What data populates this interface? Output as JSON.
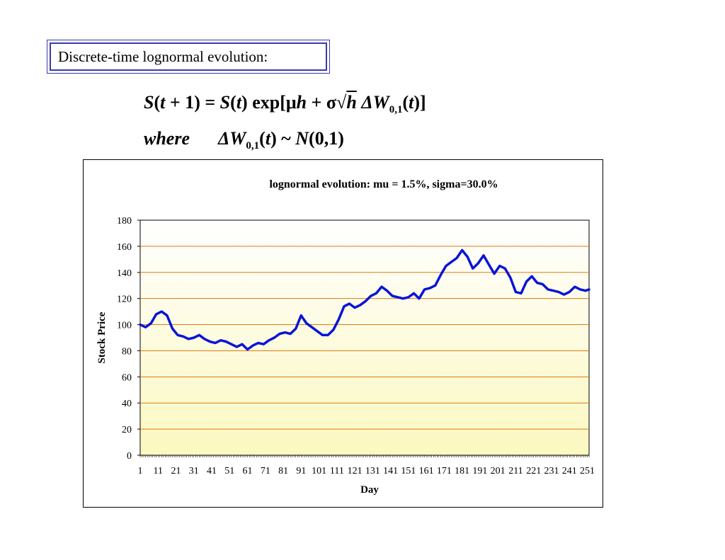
{
  "heading": "Discrete-time lognormal evolution:",
  "equation": {
    "line1": {
      "s1": "S",
      "t1": "t",
      "plus1": " + 1) = ",
      "s2": "S",
      "t2": "t",
      "exp": ") exp[",
      "mu": "μ",
      "h1": "h",
      "plus2": " + σ",
      "root": "√",
      "h2": "h",
      "dw": " ΔW",
      "sub": "0,1",
      "open": "(",
      "t3": "t",
      "close": ")]"
    },
    "line2": {
      "where": "where",
      "dw": "ΔW",
      "sub": "0,1",
      "open": "(",
      "t": "t",
      "mid": ") ~ ",
      "n": "N",
      "args": "(0,1)"
    }
  },
  "colors": {
    "line": "#0a14d8",
    "gridline": "#e07a10",
    "plot_top": "#ffffff",
    "plot_bottom": "#fbf8c0"
  },
  "chart_data": {
    "type": "line",
    "title": "lognormal evolution:  mu = 1.5%,  sigma=30.0%",
    "xlabel": "Day",
    "ylabel": "Stock Price",
    "ylim": [
      0,
      180
    ],
    "yticks": [
      0,
      20,
      40,
      60,
      80,
      100,
      120,
      140,
      160,
      180
    ],
    "xlim": [
      1,
      252
    ],
    "xticks": [
      1,
      11,
      21,
      31,
      41,
      51,
      61,
      71,
      81,
      91,
      101,
      111,
      121,
      131,
      141,
      151,
      161,
      171,
      181,
      191,
      201,
      211,
      221,
      231,
      241,
      251
    ],
    "grid": true,
    "legend": "none",
    "series": [
      {
        "x": [
          1,
          4,
          7,
          10,
          13,
          16,
          19,
          22,
          25,
          28,
          31,
          34,
          37,
          40,
          43,
          46,
          49,
          52,
          55,
          58,
          61,
          64,
          67,
          70,
          73,
          76,
          79,
          82,
          85,
          88,
          91,
          94,
          97,
          100,
          103,
          106,
          109,
          112,
          115,
          118,
          121,
          124,
          127,
          130,
          133,
          136,
          139,
          142,
          145,
          148,
          151,
          154,
          157,
          160,
          163,
          166,
          169,
          172,
          175,
          178,
          181,
          184,
          187,
          190,
          193,
          196,
          199,
          202,
          205,
          208,
          211,
          214,
          217,
          220,
          223,
          226,
          229,
          232,
          235,
          238,
          241,
          244,
          247,
          250,
          252
        ],
        "values": [
          100,
          98,
          101,
          108,
          110,
          107,
          97,
          92,
          91,
          89,
          90,
          92,
          89,
          87,
          86,
          88,
          87,
          85,
          83,
          85,
          81,
          84,
          86,
          85,
          88,
          90,
          93,
          94,
          93,
          97,
          107,
          101,
          98,
          95,
          92,
          92,
          96,
          104,
          114,
          116,
          113,
          115,
          118,
          122,
          124,
          129,
          126,
          122,
          121,
          120,
          121,
          124,
          120,
          127,
          128,
          130,
          138,
          145,
          148,
          151,
          157,
          152,
          143,
          147,
          153,
          146,
          139,
          145,
          143,
          136,
          125,
          124,
          133,
          137,
          132,
          131,
          127,
          126,
          125,
          123,
          125,
          129,
          127,
          126,
          127
        ]
      }
    ]
  }
}
